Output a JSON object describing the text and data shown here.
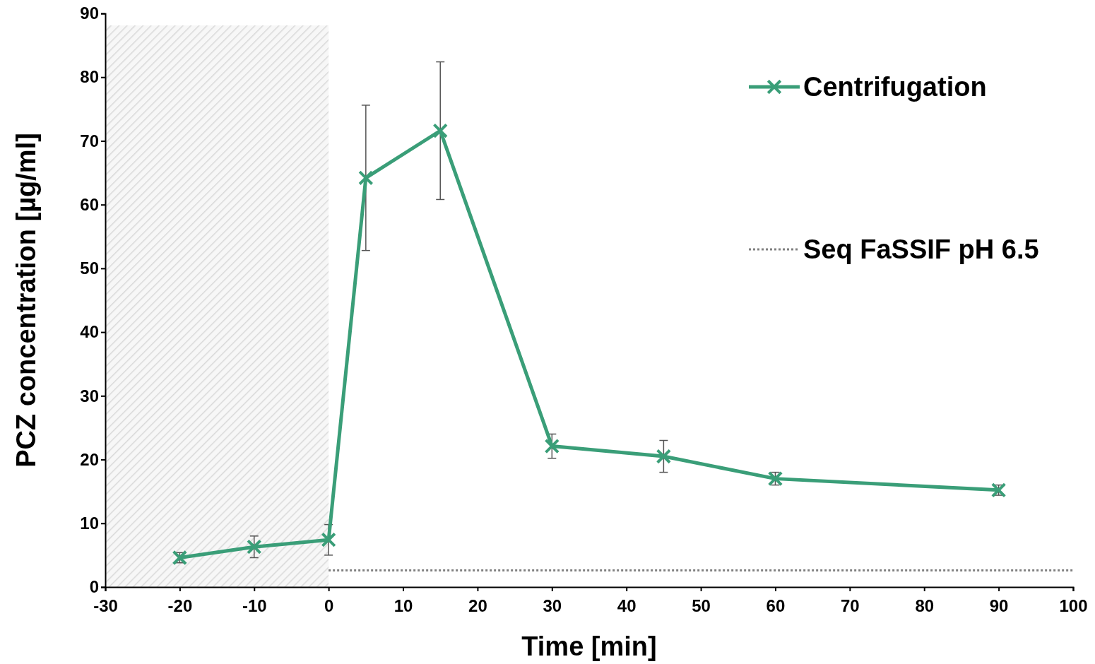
{
  "chart_data": {
    "type": "line",
    "xlabel": "Time [min]",
    "ylabel": "PCZ concentration [µg/ml]",
    "xlim": [
      -30,
      100
    ],
    "xticks": [
      -30,
      -20,
      -10,
      0,
      10,
      20,
      30,
      40,
      50,
      60,
      70,
      80,
      90,
      100
    ],
    "ylim": [
      0,
      90
    ],
    "yticks": [
      0,
      10,
      20,
      30,
      40,
      50,
      60,
      70,
      80,
      90
    ],
    "grid": false,
    "legend": "top right",
    "bands": [
      {
        "axis": "x",
        "from": -30,
        "to": 0,
        "color": "#d9d9d9"
      }
    ],
    "series": [
      {
        "name": "Centrifugation",
        "color": "#3a9e78",
        "marker": "cross",
        "line_style": "solid",
        "x": [
          -20,
          -10,
          0,
          5,
          15,
          30,
          45,
          60,
          90
        ],
        "values": [
          4.6,
          6.3,
          7.4,
          64.2,
          71.6,
          22.1,
          20.5,
          17.0,
          15.2
        ],
        "errors": [
          0.8,
          1.7,
          2.4,
          11.4,
          10.8,
          1.9,
          2.5,
          1.0,
          0.8
        ]
      },
      {
        "name": "Seq FaSSIF pH 6.5",
        "color": "#808080",
        "marker": "none",
        "line_style": "dotted",
        "x": [
          0,
          100
        ],
        "values": [
          2.6,
          2.6
        ]
      }
    ]
  }
}
